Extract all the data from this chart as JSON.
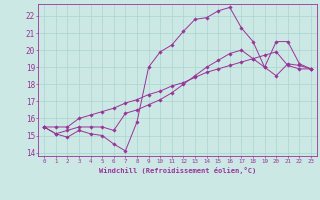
{
  "xlabel": "Windchill (Refroidissement éolien,°C)",
  "ylabel": "",
  "background_color": "#cce8e4",
  "grid_color": "#aad4d0",
  "line_color": "#993399",
  "xlim": [
    -0.5,
    23.5
  ],
  "ylim": [
    13.8,
    22.7
  ],
  "xticks": [
    0,
    1,
    2,
    3,
    4,
    5,
    6,
    7,
    8,
    9,
    10,
    11,
    12,
    13,
    14,
    15,
    16,
    17,
    18,
    19,
    20,
    21,
    22,
    23
  ],
  "yticks": [
    14,
    15,
    16,
    17,
    18,
    19,
    20,
    21,
    22
  ],
  "line1_x": [
    0,
    1,
    2,
    3,
    4,
    5,
    6,
    7,
    8,
    9,
    10,
    11,
    12,
    13,
    14,
    15,
    16,
    17,
    18,
    19,
    20,
    21,
    22,
    23
  ],
  "line1_y": [
    15.5,
    15.1,
    14.9,
    15.3,
    15.1,
    15.0,
    14.5,
    14.1,
    15.8,
    19.0,
    19.9,
    20.3,
    21.1,
    21.8,
    21.9,
    22.3,
    22.5,
    21.3,
    20.5,
    19.0,
    18.5,
    19.2,
    19.1,
    18.9
  ],
  "line2_x": [
    0,
    1,
    2,
    3,
    4,
    5,
    6,
    7,
    8,
    9,
    10,
    11,
    12,
    13,
    14,
    15,
    16,
    17,
    18,
    19,
    20,
    21,
    22,
    23
  ],
  "line2_y": [
    15.5,
    15.1,
    15.3,
    15.5,
    15.5,
    15.5,
    15.3,
    16.3,
    16.5,
    16.8,
    17.1,
    17.5,
    18.0,
    18.5,
    19.0,
    19.4,
    19.8,
    20.0,
    19.5,
    19.0,
    20.5,
    20.5,
    19.2,
    18.9
  ],
  "line3_x": [
    0,
    1,
    2,
    3,
    4,
    5,
    6,
    7,
    8,
    9,
    10,
    11,
    12,
    13,
    14,
    15,
    16,
    17,
    18,
    19,
    20,
    21,
    22,
    23
  ],
  "line3_y": [
    15.5,
    15.5,
    15.5,
    16.0,
    16.2,
    16.4,
    16.6,
    16.9,
    17.1,
    17.4,
    17.6,
    17.9,
    18.1,
    18.4,
    18.7,
    18.9,
    19.1,
    19.3,
    19.5,
    19.7,
    19.9,
    19.1,
    18.9,
    18.9
  ]
}
